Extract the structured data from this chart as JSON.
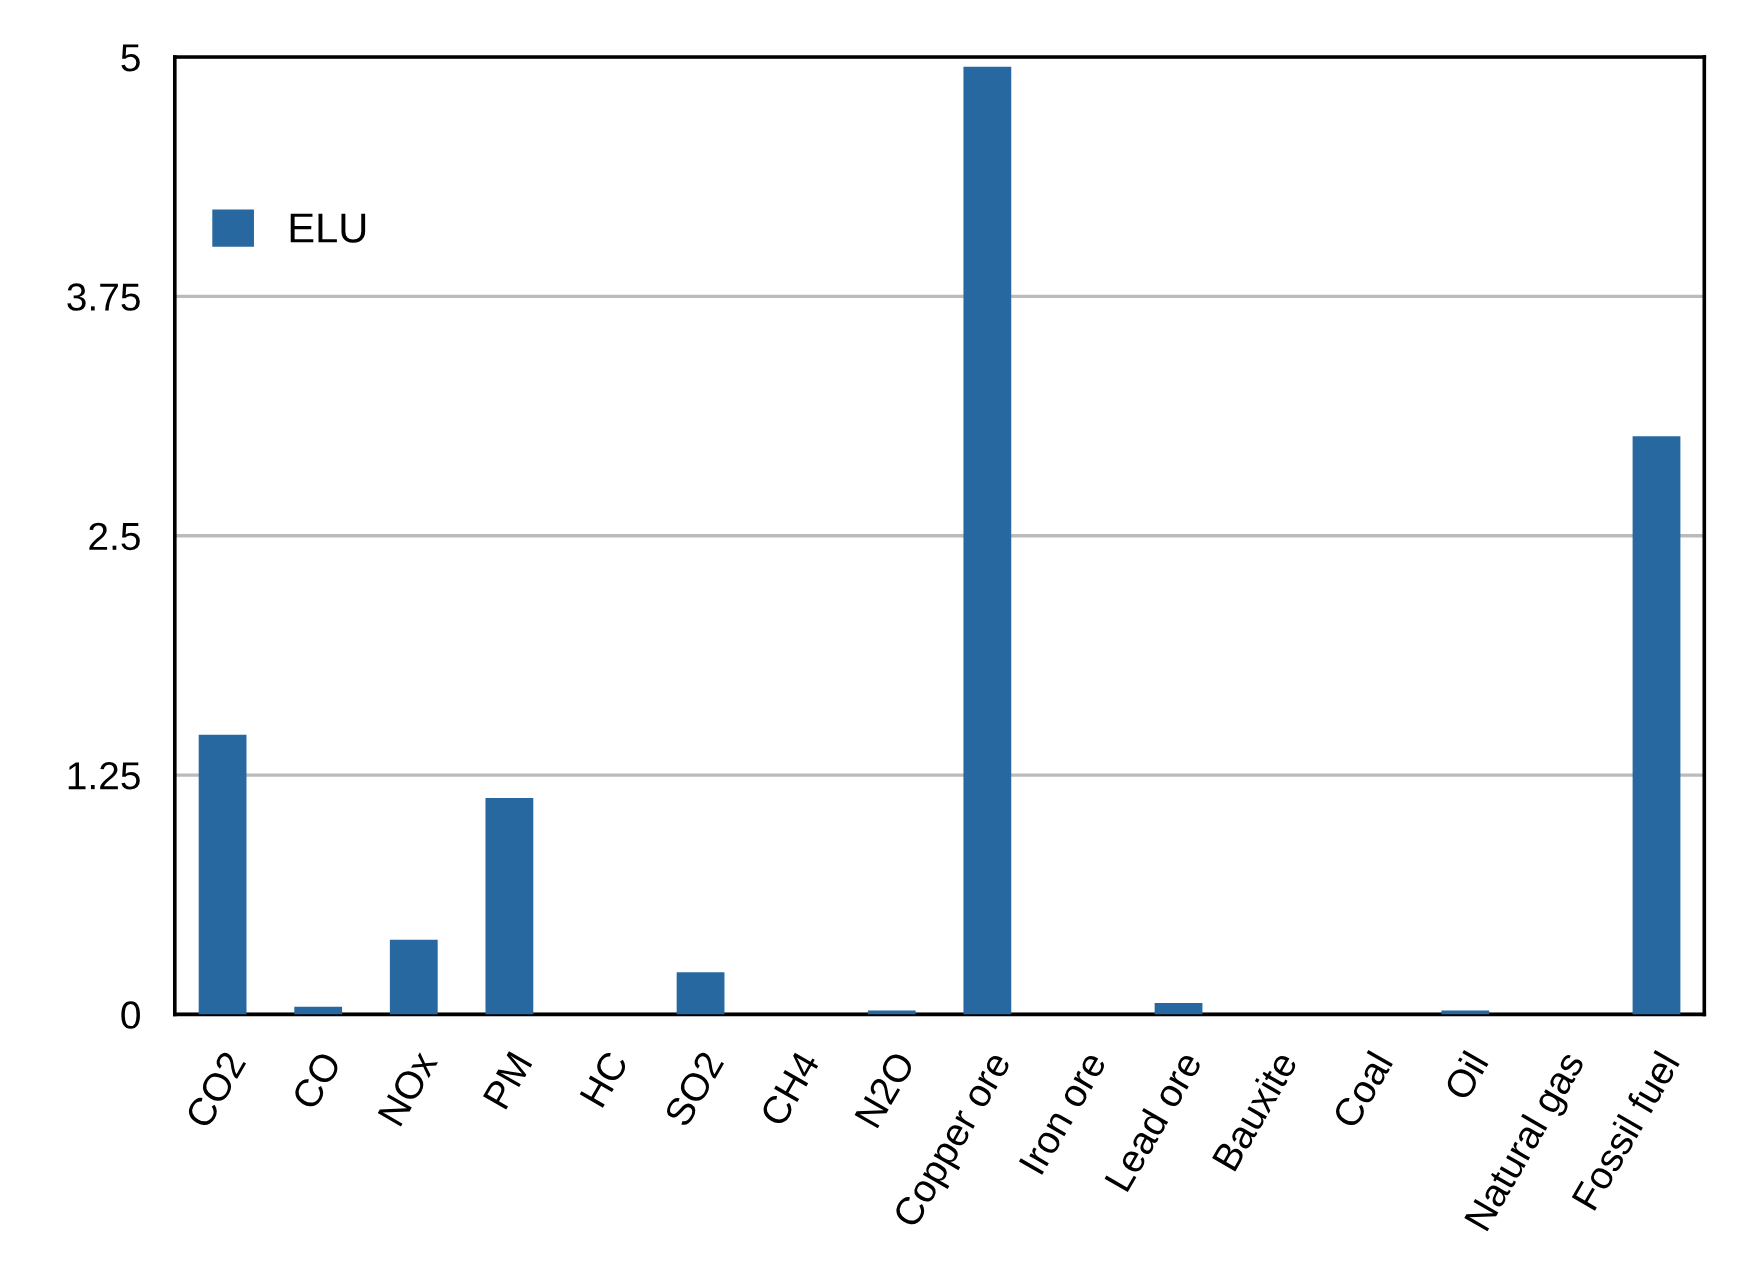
{
  "chart_data": {
    "type": "bar",
    "categories": [
      "CO2",
      "CO",
      "NOx",
      "PM",
      "HC",
      "SO2",
      "CH4",
      "N2O",
      "Copper ore",
      "Iron ore",
      "Lead ore",
      "Bauxite",
      "Coal",
      "Oil",
      "Natural gas",
      "Fossil fuel"
    ],
    "series": [
      {
        "name": "ELU",
        "color": "#2768a0",
        "values": [
          1.46,
          0.04,
          0.39,
          1.13,
          0,
          0.22,
          0,
          0.02,
          4.95,
          0,
          0.06,
          0,
          0,
          0.02,
          0,
          3.02
        ]
      }
    ],
    "ylim": [
      0,
      5
    ],
    "yticks": [
      0,
      1.25,
      2.5,
      3.75,
      5
    ],
    "grid": "y",
    "legend": "top left"
  }
}
